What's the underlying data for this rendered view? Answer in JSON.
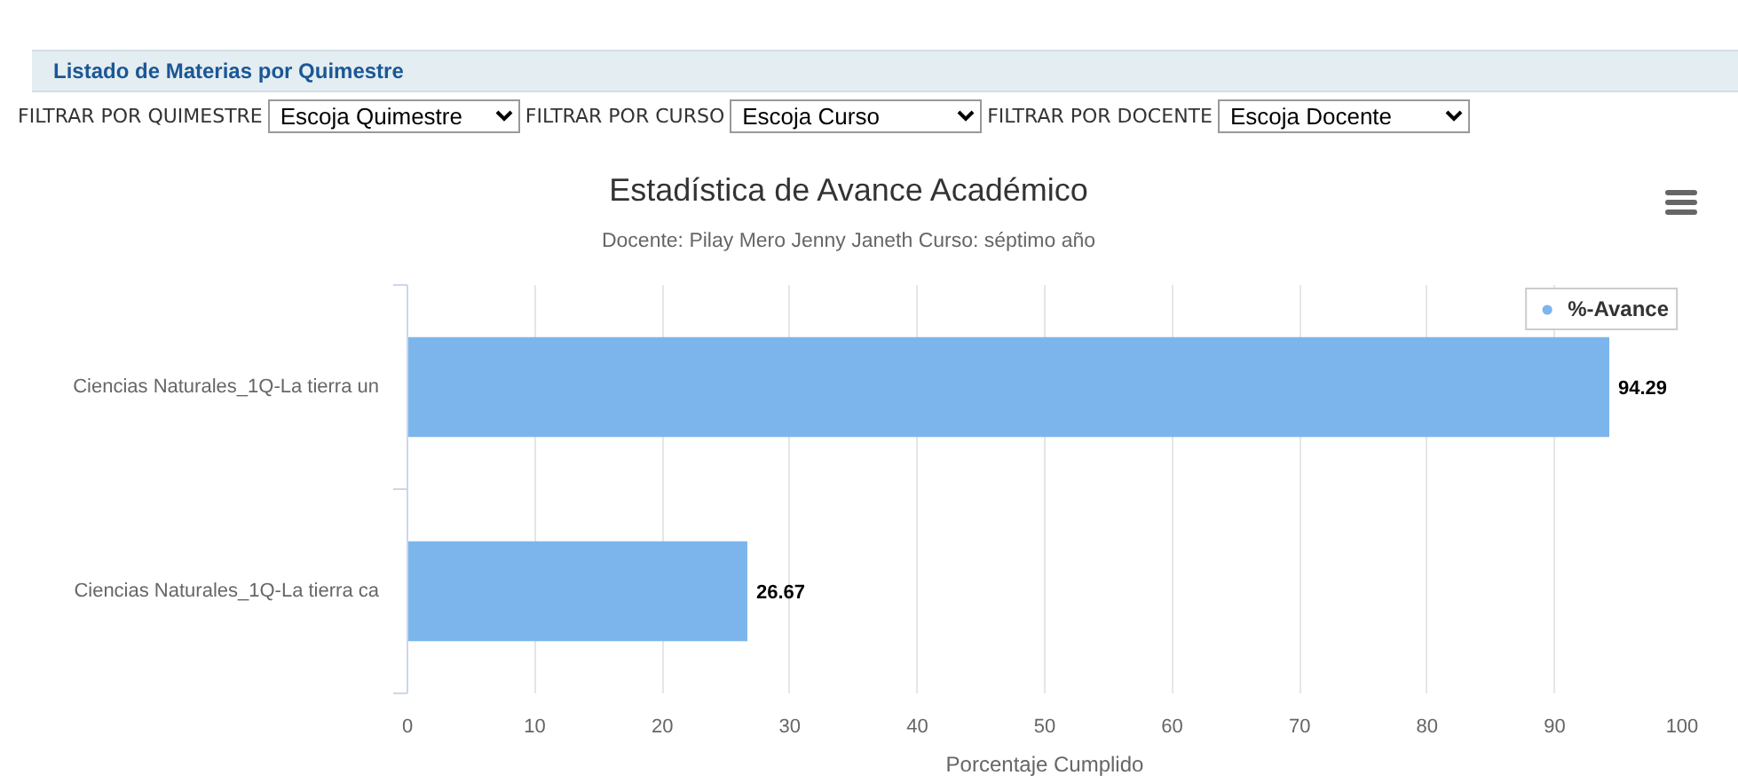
{
  "chart_data": {
    "type": "bar",
    "orientation": "horizontal",
    "title": "Estadística de Avance Académico",
    "subtitle": "Docente: Pilay Mero Jenny Janeth Curso: séptimo año",
    "xlabel": "Porcentaje Cumplido",
    "categories": [
      "Ciencias Naturales_1Q-La tierra un",
      "Ciencias Naturales_1Q-La tierra ca"
    ],
    "series": [
      {
        "name": "%-Avance",
        "color": "#7cb5ec",
        "values": [
          94.29,
          26.67
        ]
      }
    ],
    "xlim": [
      0,
      100
    ],
    "xticks": [
      0,
      10,
      20,
      30,
      40,
      50,
      60,
      70,
      80,
      90,
      100
    ],
    "grid": "x",
    "legend": "top right",
    "data_labels": true,
    "annotations": [
      "Listado de Materias por Quimestre",
      "FILTRAR POR QUIMESTRE",
      "Escoja Quimestre",
      "FILTRAR POR CURSO",
      "Escoja Curso",
      "FILTRAR POR DOCENTE",
      "Escoja Docente"
    ]
  }
}
